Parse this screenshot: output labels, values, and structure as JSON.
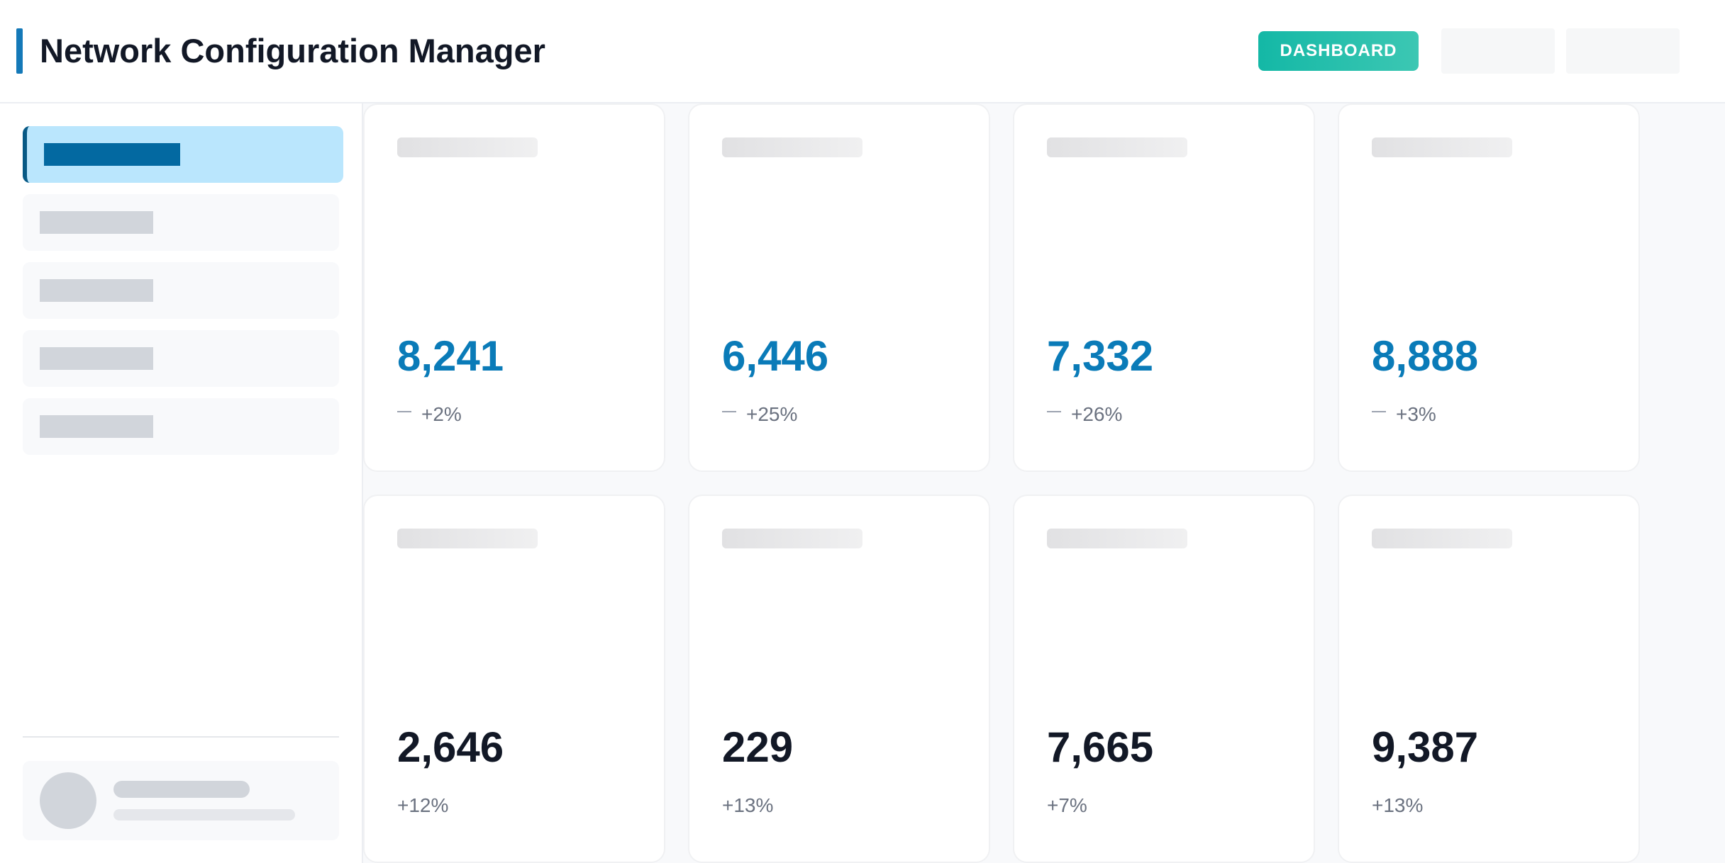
{
  "header": {
    "title": "Network Configuration Manager",
    "dashboard_button": "DASHBOARD"
  },
  "colors": {
    "accent": "#1479b8",
    "teal_button": "#14b8a6",
    "active_nav_bg": "#bae6fd",
    "value_blue": "#0a7bb8",
    "value_dark": "#121826"
  },
  "cards": [
    {
      "value": "8,241",
      "trend": "+2%",
      "has_trend_icon": true
    },
    {
      "value": "6,446",
      "trend": "+25%",
      "has_trend_icon": true
    },
    {
      "value": "7,332",
      "trend": "+26%",
      "has_trend_icon": true
    },
    {
      "value": "8,888",
      "trend": "+3%",
      "has_trend_icon": true
    },
    {
      "value": "2,646",
      "trend": "+12%",
      "has_trend_icon": false
    },
    {
      "value": "229",
      "trend": "+13%",
      "has_trend_icon": false
    },
    {
      "value": "7,665",
      "trend": "+7%",
      "has_trend_icon": false
    },
    {
      "value": "9,387",
      "trend": "+13%",
      "has_trend_icon": false
    }
  ]
}
